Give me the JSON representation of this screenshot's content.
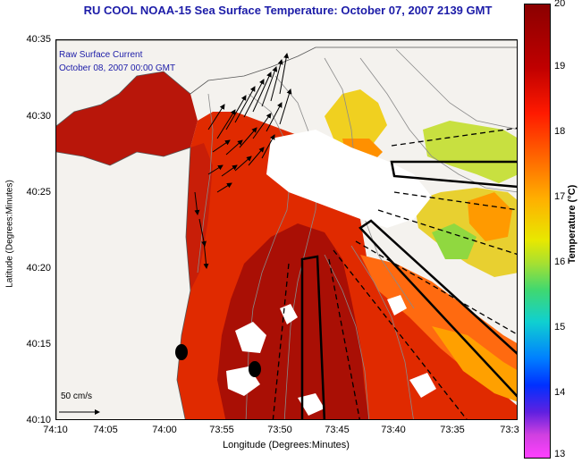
{
  "title": "RU COOL  NOAA-15  Sea Surface Temperature:  October 07, 2007 2139 GMT",
  "inset": {
    "line1": "Raw Surface Current",
    "line2": "October 08, 2007 00:00 GMT"
  },
  "scale_label": "50 cm/s",
  "axes": {
    "x_title": "Longitude (Degrees:Minutes)",
    "y_title": "Latitude (Degrees:Minutes)",
    "x_ticks": [
      "74:10",
      "74:05",
      "74:00",
      "73:55",
      "73:50",
      "73:45",
      "73:40",
      "73:35",
      "73:3"
    ],
    "y_ticks": [
      "40:35",
      "40:30",
      "40:25",
      "40:20",
      "40:15",
      "40:10"
    ]
  },
  "colorbar": {
    "title": "Temperature (°C)",
    "ticks": [
      "20",
      "19",
      "18",
      "17",
      "16",
      "15",
      "14",
      "13"
    ]
  },
  "colors": {
    "title_text": "#1c1ca8",
    "warm_sst": "#e02a00",
    "hot_sst": "#a30c05",
    "cool_sst": "#f0d020",
    "land": "#f4f2ee"
  }
}
